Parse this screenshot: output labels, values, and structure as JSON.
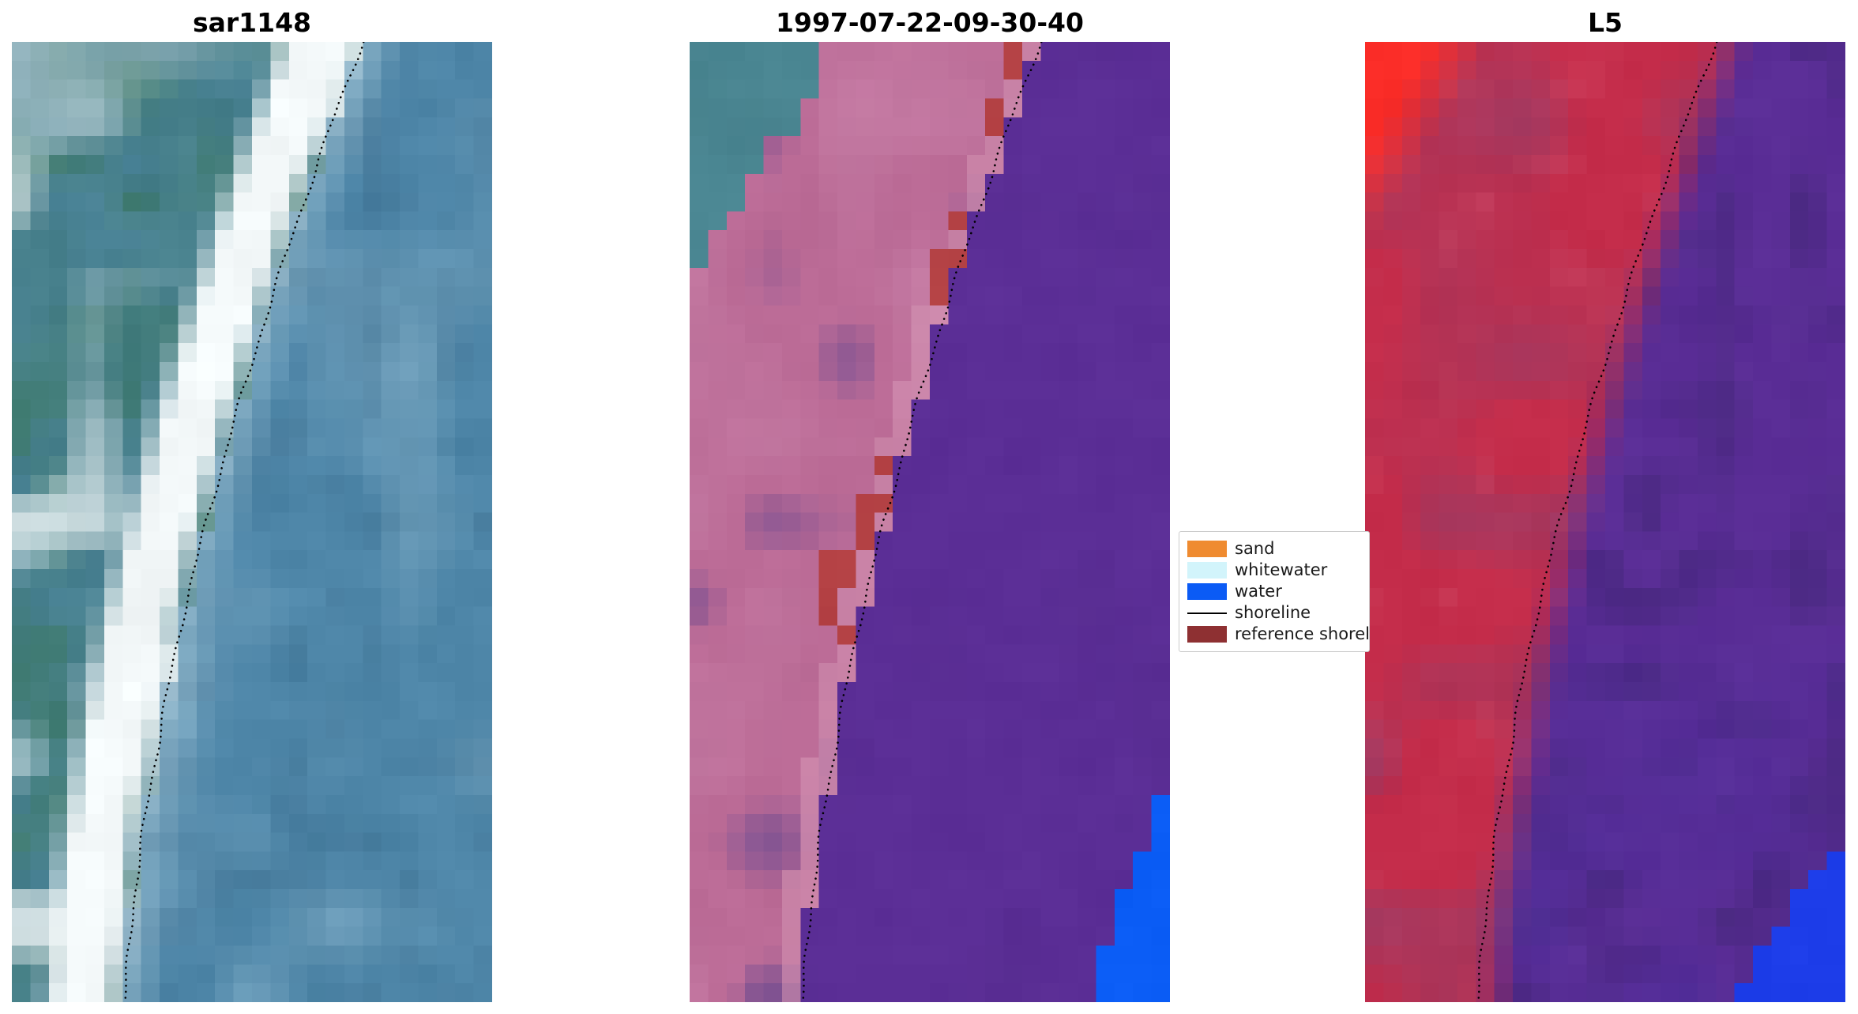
{
  "figure": {
    "background": "#ffffff",
    "panels": [
      {
        "title": "sar1148"
      },
      {
        "title": "1997-07-22-09-30-40"
      },
      {
        "title": "L5"
      }
    ],
    "legend": {
      "items": [
        {
          "label": "sand",
          "kind": "patch",
          "color": "#ef8b30"
        },
        {
          "label": "whitewater",
          "kind": "patch",
          "color": "#d2f4fb"
        },
        {
          "label": "water",
          "kind": "patch",
          "color": "#0b5bf5"
        },
        {
          "label": "shoreline",
          "kind": "line",
          "color": "#000000"
        },
        {
          "label": "reference shoreline",
          "kind": "patch",
          "color": "#8e3032"
        }
      ]
    }
  },
  "chart_data": {
    "type": "heatmap",
    "title": "",
    "panels": [
      {
        "title": "sar1148",
        "kind": "sar_image",
        "palette": {
          "water": "#4e86a8",
          "water_light": "#7da9c2",
          "land": "#47808c",
          "land_green": "#3e7a6b",
          "bright": "#dde8ea",
          "band": "#f3f8f9"
        }
      },
      {
        "title": "1997-07-22-09-30-40",
        "kind": "classified_image",
        "palette": {
          "water_purple": "#5b2e96",
          "land_pink": "#bb6b96",
          "land_purple": "#7a4f90",
          "beach_pink": "#d698b6",
          "teal": "#4a8692",
          "red": "#b23c3c",
          "blue": "#0a5cf5"
        }
      },
      {
        "title": "L5",
        "kind": "landsat_image",
        "palette": {
          "red": "#c42c4a",
          "red_dark": "#a03a62",
          "red_bright": "#fb2d28",
          "purple": "#5a2d96",
          "purple_dark": "#46287c",
          "blue": "#1c3ce8"
        }
      }
    ],
    "shoreline_normalized": [
      [
        0.73,
        0.0
      ],
      [
        0.655,
        0.1
      ],
      [
        0.585,
        0.2
      ],
      [
        0.52,
        0.3
      ],
      [
        0.46,
        0.4
      ],
      [
        0.405,
        0.5
      ],
      [
        0.355,
        0.6
      ],
      [
        0.315,
        0.7
      ],
      [
        0.28,
        0.8
      ],
      [
        0.252,
        0.9
      ],
      [
        0.235,
        1.0
      ]
    ],
    "red_patches_d_v": [
      [
        -0.065,
        -0.015,
        0.0,
        0.09
      ],
      [
        -0.06,
        -0.005,
        0.17,
        0.27
      ],
      [
        -0.055,
        -0.005,
        0.44,
        0.53
      ],
      [
        -0.105,
        -0.04,
        0.52,
        0.61
      ],
      [
        -0.05,
        -0.02,
        0.61,
        0.65
      ]
    ],
    "legend_entries": [
      "sand",
      "whitewater",
      "water",
      "shoreline",
      "reference shoreline"
    ]
  }
}
